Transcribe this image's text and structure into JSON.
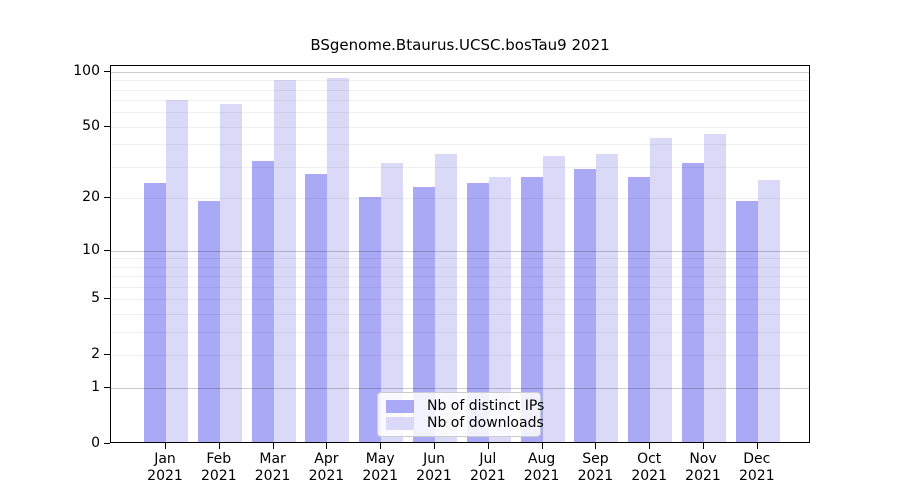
{
  "title": "BSgenome.Btaurus.UCSC.bosTau9 2021",
  "chart_data": {
    "type": "bar",
    "title": "BSgenome.Btaurus.UCSC.bosTau9 2021",
    "scale": "log1p",
    "categories": [
      "Jan",
      "Feb",
      "Mar",
      "Apr",
      "May",
      "Jun",
      "Jul",
      "Aug",
      "Sep",
      "Oct",
      "Nov",
      "Dec"
    ],
    "year": "2021",
    "series": [
      {
        "name": "Nb of distinct IPs",
        "color": "#a9a9f6",
        "values": [
          24,
          19,
          32,
          27,
          20,
          23,
          24,
          26,
          29,
          26,
          31,
          19
        ]
      },
      {
        "name": "Nb of downloads",
        "color": "#dadaf8",
        "values": [
          69,
          66,
          89,
          91,
          31,
          35,
          26,
          34,
          35,
          43,
          45,
          25
        ]
      }
    ],
    "xlabel": "",
    "ylabel": "",
    "ylim": [
      0,
      105
    ],
    "y_ticks": [
      0,
      1,
      2,
      5,
      10,
      20,
      50,
      100
    ],
    "gridlines": {
      "minor": [
        2,
        3,
        4,
        5,
        6,
        7,
        8,
        9,
        20,
        30,
        40,
        50,
        60,
        70,
        80,
        90
      ],
      "major": [
        1,
        10,
        100
      ]
    },
    "grid": true,
    "legend_position": "bottom-center",
    "colors": {
      "distinct_ips": "#a9a9f6",
      "downloads": "#dadaf8",
      "axis": "#000000",
      "legend_border": "#cccccc"
    }
  }
}
